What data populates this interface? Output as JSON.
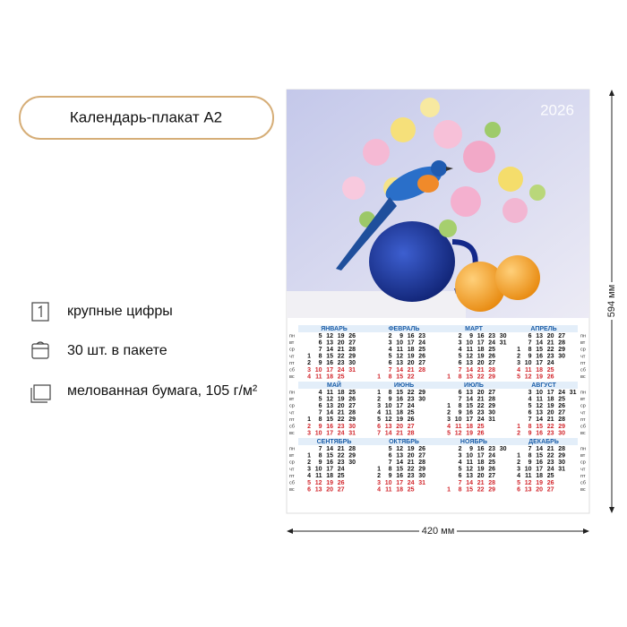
{
  "title": "Календарь-плакат А2",
  "features": [
    "крупные цифры",
    "30 шт. в пакете",
    "мелованная бумага, 105 г/м²"
  ],
  "poster": {
    "year": "2026",
    "weekdays": [
      "пн",
      "вт",
      "ср",
      "чт",
      "пт",
      "сб",
      "вс"
    ],
    "months": [
      {
        "name": "ЯНВАРЬ",
        "rows": [
          [
            5,
            12,
            19,
            26
          ],
          [
            6,
            13,
            20,
            27
          ],
          [
            7,
            14,
            21,
            28
          ],
          [
            1,
            8,
            15,
            22,
            29
          ],
          [
            2,
            9,
            16,
            23,
            30
          ],
          [
            3,
            10,
            17,
            24,
            31
          ],
          [
            4,
            11,
            18,
            25
          ]
        ]
      },
      {
        "name": "ФЕВРАЛЬ",
        "rows": [
          [
            2,
            9,
            16,
            23
          ],
          [
            3,
            10,
            17,
            24
          ],
          [
            4,
            11,
            18,
            25
          ],
          [
            5,
            12,
            19,
            26
          ],
          [
            6,
            13,
            20,
            27
          ],
          [
            7,
            14,
            21,
            28
          ],
          [
            1,
            8,
            15,
            22
          ]
        ]
      },
      {
        "name": "МАРТ",
        "rows": [
          [
            2,
            9,
            16,
            23,
            30
          ],
          [
            3,
            10,
            17,
            24,
            31
          ],
          [
            4,
            11,
            18,
            25
          ],
          [
            5,
            12,
            19,
            26
          ],
          [
            6,
            13,
            20,
            27
          ],
          [
            7,
            14,
            21,
            28
          ],
          [
            1,
            8,
            15,
            22,
            29
          ]
        ]
      },
      {
        "name": "АПРЕЛЬ",
        "rows": [
          [
            6,
            13,
            20,
            27
          ],
          [
            7,
            14,
            21,
            28
          ],
          [
            1,
            8,
            15,
            22,
            29
          ],
          [
            2,
            9,
            16,
            23,
            30
          ],
          [
            3,
            10,
            17,
            24
          ],
          [
            4,
            11,
            18,
            25
          ],
          [
            5,
            12,
            19,
            26
          ]
        ]
      },
      {
        "name": "МАЙ",
        "rows": [
          [
            4,
            11,
            18,
            25
          ],
          [
            5,
            12,
            19,
            26
          ],
          [
            6,
            13,
            20,
            27
          ],
          [
            7,
            14,
            21,
            28
          ],
          [
            1,
            8,
            15,
            22,
            29
          ],
          [
            2,
            9,
            16,
            23,
            30
          ],
          [
            3,
            10,
            17,
            24,
            31
          ]
        ]
      },
      {
        "name": "ИЮНЬ",
        "rows": [
          [
            1,
            8,
            15,
            22,
            29
          ],
          [
            2,
            9,
            16,
            23,
            30
          ],
          [
            3,
            10,
            17,
            24
          ],
          [
            4,
            11,
            18,
            25
          ],
          [
            5,
            12,
            19,
            26
          ],
          [
            6,
            13,
            20,
            27
          ],
          [
            7,
            14,
            21,
            28
          ]
        ]
      },
      {
        "name": "ИЮЛЬ",
        "rows": [
          [
            6,
            13,
            20,
            27
          ],
          [
            7,
            14,
            21,
            28
          ],
          [
            1,
            8,
            15,
            22,
            29
          ],
          [
            2,
            9,
            16,
            23,
            30
          ],
          [
            3,
            10,
            17,
            24,
            31
          ],
          [
            4,
            11,
            18,
            25
          ],
          [
            5,
            12,
            19,
            26
          ]
        ]
      },
      {
        "name": "АВГУСТ",
        "rows": [
          [
            3,
            10,
            17,
            24,
            31
          ],
          [
            4,
            11,
            18,
            25
          ],
          [
            5,
            12,
            19,
            26
          ],
          [
            6,
            13,
            20,
            27
          ],
          [
            7,
            14,
            21,
            28
          ],
          [
            1,
            8,
            15,
            22,
            29
          ],
          [
            2,
            9,
            16,
            23,
            30
          ]
        ]
      },
      {
        "name": "СЕНТЯБРЬ",
        "rows": [
          [
            7,
            14,
            21,
            28
          ],
          [
            1,
            8,
            15,
            22,
            29
          ],
          [
            2,
            9,
            16,
            23,
            30
          ],
          [
            3,
            10,
            17,
            24
          ],
          [
            4,
            11,
            18,
            25
          ],
          [
            5,
            12,
            19,
            26
          ],
          [
            6,
            13,
            20,
            27
          ]
        ]
      },
      {
        "name": "ОКТЯБРЬ",
        "rows": [
          [
            5,
            12,
            19,
            26
          ],
          [
            6,
            13,
            20,
            27
          ],
          [
            7,
            14,
            21,
            28
          ],
          [
            1,
            8,
            15,
            22,
            29
          ],
          [
            2,
            9,
            16,
            23,
            30
          ],
          [
            3,
            10,
            17,
            24,
            31
          ],
          [
            4,
            11,
            18,
            25
          ]
        ]
      },
      {
        "name": "НОЯБРЬ",
        "rows": [
          [
            2,
            9,
            16,
            23,
            30
          ],
          [
            3,
            10,
            17,
            24
          ],
          [
            4,
            11,
            18,
            25
          ],
          [
            5,
            12,
            19,
            26
          ],
          [
            6,
            13,
            20,
            27
          ],
          [
            7,
            14,
            21,
            28
          ],
          [
            1,
            8,
            15,
            22,
            29
          ]
        ]
      },
      {
        "name": "ДЕКАБРЬ",
        "rows": [
          [
            7,
            14,
            21,
            28
          ],
          [
            1,
            8,
            15,
            22,
            29
          ],
          [
            2,
            9,
            16,
            23,
            30
          ],
          [
            3,
            10,
            17,
            24,
            31
          ],
          [
            4,
            11,
            18,
            25
          ],
          [
            5,
            12,
            19,
            26
          ],
          [
            6,
            13,
            20,
            27
          ]
        ]
      }
    ]
  },
  "dimensions": {
    "height": "594 мм",
    "width": "420 мм"
  }
}
